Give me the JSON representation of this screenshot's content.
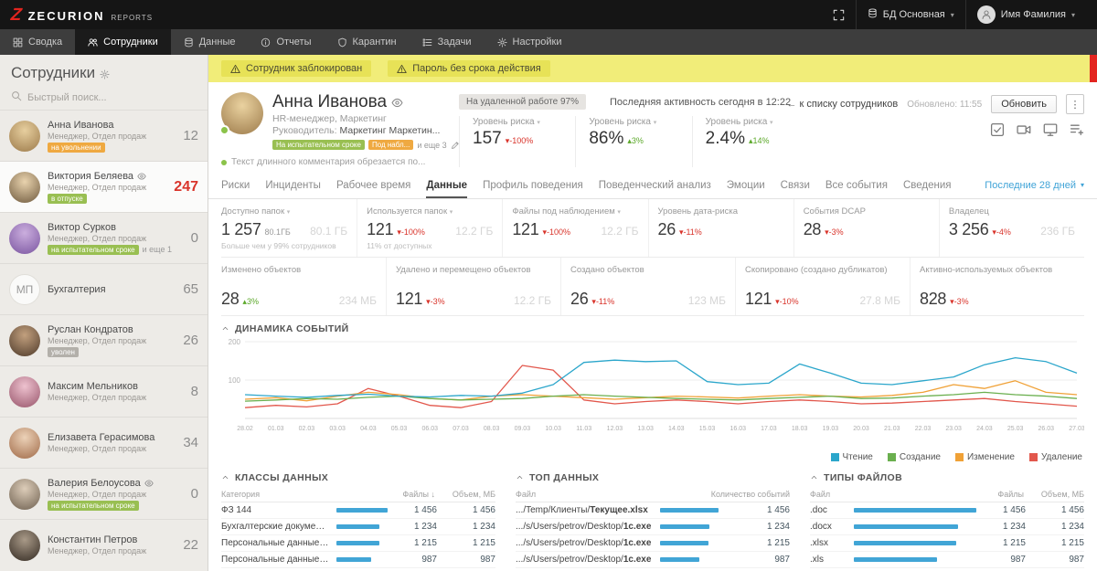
{
  "topbar": {
    "brand": "ZECURION",
    "brand_sub": "REPORTS",
    "db_label": "БД Основная",
    "user_name": "Имя Фамилия"
  },
  "nav": {
    "items": [
      {
        "label": "Сводка",
        "icon": "grid",
        "active": false
      },
      {
        "label": "Сотрудники",
        "icon": "users",
        "active": true
      },
      {
        "label": "Данные",
        "icon": "database",
        "active": false
      },
      {
        "label": "Отчеты",
        "icon": "reports",
        "active": false
      },
      {
        "label": "Карантин",
        "icon": "quarantine",
        "active": false
      },
      {
        "label": "Задачи",
        "icon": "tasks",
        "active": false
      },
      {
        "label": "Настройки",
        "icon": "settings",
        "active": false
      }
    ]
  },
  "alerts": [
    {
      "label": "Сотрудник заблокирован"
    },
    {
      "label": "Пароль без срока действия"
    }
  ],
  "sidebar": {
    "title": "Сотрудники",
    "search_placeholder": "Быстрый поиск...",
    "employees": [
      {
        "name": "Анна Иванова",
        "subtitle": "Менеджер, Отдел продаж",
        "badge": "на увольнении",
        "badge_color": "orange",
        "count": "12",
        "avatar_colors": [
          "#e7cf9f",
          "#9c7a4a"
        ]
      },
      {
        "name": "Виктория Беляева",
        "eye": true,
        "selected": true,
        "subtitle": "Менеджер, Отдел продаж",
        "badge": "в отпуске",
        "badge_color": "green",
        "count": "247",
        "count_alert": true,
        "avatar_colors": [
          "#e9d3ae",
          "#6f5a3e"
        ]
      },
      {
        "name": "Виктор Сурков",
        "subtitle": "Менеджер, Отдел продаж",
        "badge": "на испытательном сроке",
        "badge_color": "green",
        "badge_extra": "и еще 1",
        "count": "0",
        "avatar_colors": [
          "#cbaede",
          "#7a55a0"
        ]
      },
      {
        "name": "Бухгалтерия",
        "initials": "МП",
        "count": "65"
      },
      {
        "name": "Руслан Кондратов",
        "subtitle": "Менеджер, Отдел продаж",
        "badge": "уволен",
        "badge_color": "gray",
        "count": "26",
        "avatar_colors": [
          "#c2a07e",
          "#4e3a2a"
        ]
      },
      {
        "name": "Максим Мельников",
        "subtitle": "Менеджер, Отдел продаж",
        "count": "8",
        "avatar_colors": [
          "#eec2cf",
          "#97546a"
        ]
      },
      {
        "name": "Елизавета Герасимова",
        "subtitle": "Менеджер, Отдел продаж",
        "count": "34",
        "avatar_colors": [
          "#ecd2b8",
          "#a06a48"
        ]
      },
      {
        "name": "Валерия Белоусова",
        "eye": true,
        "subtitle": "Менеджер, Отдел продаж",
        "badge": "на испытательном сроке",
        "badge_color": "green",
        "count": "0",
        "avatar_colors": [
          "#ddcdb9",
          "#6e6050"
        ]
      },
      {
        "name": "Константин Петров",
        "subtitle": "Менеджер, Отдел продаж",
        "count": "22",
        "avatar_colors": [
          "#a99a88",
          "#332a22"
        ]
      }
    ]
  },
  "profile": {
    "name": "Анна Иванова",
    "avatar_colors": [
      "#ead2a0",
      "#9c7a4a"
    ],
    "role": "HR-менеджер, Маркетинг",
    "manager_label": "Руководитель:",
    "manager_value": "Маркетинг Маркетин...",
    "badges": [
      {
        "label": "На испытательном сроке",
        "color": "green"
      },
      {
        "label": "Под набл...",
        "color": "orange"
      }
    ],
    "badges_more": "и еще 3",
    "comment": "Текст длинного комментария обрезается по...",
    "remote_badge": "На удаленной работе 97%",
    "last_activity": "Последняя активность сегодня в 12:22",
    "risks": [
      {
        "label": "Уровень риска",
        "value": "157",
        "delta": "-100%",
        "delta_dir": "down",
        "delta_color": "red"
      },
      {
        "label": "Уровень риска",
        "value": "86%",
        "delta": "3%",
        "delta_dir": "up",
        "delta_color": "green"
      },
      {
        "label": "Уровень риска",
        "value": "2.4%",
        "delta": "14%",
        "delta_dir": "up",
        "delta_color": "green"
      }
    ],
    "back_link": "к списку сотрудников",
    "updated": "Обновлено: 11:55",
    "refresh_button": "Обновить",
    "action_icons": [
      "checkbox",
      "camera",
      "monitor",
      "list-plus"
    ]
  },
  "tabs": {
    "items": [
      "Риски",
      "Инциденты",
      "Рабочее время",
      "Данные",
      "Профиль поведения",
      "Поведенческий анализ",
      "Эмоции",
      "Связи",
      "Все события",
      "Сведения"
    ],
    "active_index": 3,
    "period": "Последние 28 дней"
  },
  "stats": {
    "row1": [
      {
        "label": "Доступно папок",
        "dropdown": true,
        "value": "1 257",
        "value_suffix": "80.1ГБ",
        "aside": "80.1 ГБ",
        "note": "Больше чем у 99% сотрудников"
      },
      {
        "label": "Используется папок",
        "dropdown": true,
        "value": "121",
        "delta": "-100%",
        "delta_color": "red",
        "aside": "12.2 ГБ",
        "note": "11% от доступных"
      },
      {
        "label": "Файлы под наблюдением",
        "dropdown": true,
        "value": "121",
        "delta": "-100%",
        "delta_color": "red",
        "aside": "12.2 ГБ"
      },
      {
        "label": "Уровень дата-риска",
        "value": "26",
        "delta": "-11%",
        "delta_color": "red"
      },
      {
        "label": "События DCAP",
        "value": "28",
        "delta": "-3%",
        "delta_color": "red"
      },
      {
        "label": "Владелец",
        "value": "3 256",
        "delta": "-4%",
        "delta_color": "red",
        "aside": "236 ГБ"
      }
    ],
    "row2": [
      {
        "label": "Изменено объектов",
        "value": "28",
        "delta": "3%",
        "delta_color": "green",
        "aside": "234 МБ"
      },
      {
        "label": "Удалено и перемещено объектов",
        "value": "121",
        "delta": "-3%",
        "delta_color": "red",
        "aside": "12.2 ГБ"
      },
      {
        "label": "Создано объектов",
        "value": "26",
        "delta": "-11%",
        "delta_color": "red",
        "aside": "123 МБ"
      },
      {
        "label": "Скопировано (создано дубликатов)",
        "value": "121",
        "delta": "-10%",
        "delta_color": "red",
        "aside": "27.8 МБ"
      },
      {
        "label": "Активно-используемых объектов",
        "value": "828",
        "delta": "-3%",
        "delta_color": "red"
      }
    ]
  },
  "chart_section": {
    "title": "ДИНАМИКА СОБЫТИЙ"
  },
  "chart_data": {
    "type": "line",
    "x": [
      "28.02",
      "01.03",
      "02.03",
      "03.03",
      "04.03",
      "05.03",
      "06.03",
      "07.03",
      "08.03",
      "09.03",
      "10.03",
      "11.03",
      "12.03",
      "13.03",
      "14.03",
      "15.03",
      "16.03",
      "17.03",
      "18.03",
      "19.03",
      "20.03",
      "21.03",
      "22.03",
      "23.03",
      "24.03",
      "25.03",
      "26.03",
      "27.03"
    ],
    "ylim": [
      0,
      200
    ],
    "yticks": [
      100,
      200
    ],
    "grid": true,
    "legend_position": "bottom-right",
    "series": [
      {
        "name": "Чтение",
        "color": "#2ba6cb",
        "values": [
          62,
          58,
          55,
          60,
          63,
          58,
          56,
          60,
          58,
          66,
          88,
          146,
          152,
          148,
          150,
          96,
          88,
          92,
          142,
          118,
          92,
          88,
          98,
          108,
          140,
          158,
          148,
          118
        ]
      },
      {
        "name": "Создание",
        "color": "#6aaf4e",
        "values": [
          45,
          48,
          52,
          50,
          55,
          58,
          52,
          48,
          50,
          52,
          58,
          62,
          58,
          55,
          52,
          50,
          48,
          52,
          55,
          58,
          52,
          53,
          58,
          62,
          68,
          62,
          58,
          52
        ]
      },
      {
        "name": "Изменение",
        "color": "#f0a136",
        "values": [
          50,
          54,
          46,
          58,
          68,
          62,
          52,
          48,
          58,
          62,
          58,
          54,
          50,
          54,
          58,
          56,
          53,
          58,
          62,
          58,
          56,
          60,
          68,
          88,
          78,
          98,
          68,
          62
        ]
      },
      {
        "name": "Удаление",
        "color": "#e2574c",
        "values": [
          28,
          34,
          30,
          38,
          78,
          58,
          34,
          28,
          44,
          138,
          126,
          48,
          38,
          44,
          48,
          44,
          38,
          44,
          48,
          44,
          38,
          40,
          44,
          48,
          52,
          44,
          38,
          32
        ]
      }
    ]
  },
  "panels": [
    {
      "title": "КЛАССЫ ДАННЫХ",
      "columns": [
        "Категория",
        "Файлы ↓",
        "Объем, МБ"
      ],
      "bar_max": 1456,
      "rows": [
        {
          "label": "ФЗ 144",
          "bar": 1456,
          "v1": "1 456",
          "v2": "1 456"
        },
        {
          "label": "Бухгалтерские документы",
          "bar": 1234,
          "v1": "1 234",
          "v2": "1 234"
        },
        {
          "label": "Персональные данные со...",
          "bar": 1215,
          "v1": "1 215",
          "v2": "1 215"
        },
        {
          "label": "Персональные данные кли...",
          "bar": 987,
          "v1": "987",
          "v2": "987"
        }
      ]
    },
    {
      "title": "ТОП ДАННЫХ",
      "columns": [
        "Файл",
        "Количество событий"
      ],
      "bar_max": 1456,
      "rows": [
        {
          "label": ".../Temp/Клиенты/Текущее.xlsx",
          "bar": 1456,
          "v1": "1 456"
        },
        {
          "label": ".../s/Users/petrov/Desktop/1c.exe",
          "bar": 1234,
          "v1": "1 234"
        },
        {
          "label": ".../s/Users/petrov/Desktop/1c.exe",
          "bar": 1215,
          "v1": "1 215"
        },
        {
          "label": ".../s/Users/petrov/Desktop/1c.exe",
          "bar": 987,
          "v1": "987"
        }
      ]
    },
    {
      "title": "ТИПЫ ФАЙЛОВ",
      "columns": [
        "Файл",
        "Файлы",
        "Объем, МБ"
      ],
      "bar_max": 1456,
      "rows": [
        {
          "label": ".doc",
          "bar": 1456,
          "v1": "1 456",
          "v2": "1 456"
        },
        {
          "label": ".docx",
          "bar": 1234,
          "v1": "1 234",
          "v2": "1 234"
        },
        {
          "label": ".xlsx",
          "bar": 1215,
          "v1": "1 215",
          "v2": "1 215"
        },
        {
          "label": ".xls",
          "bar": 987,
          "v1": "987",
          "v2": "987"
        }
      ]
    }
  ]
}
